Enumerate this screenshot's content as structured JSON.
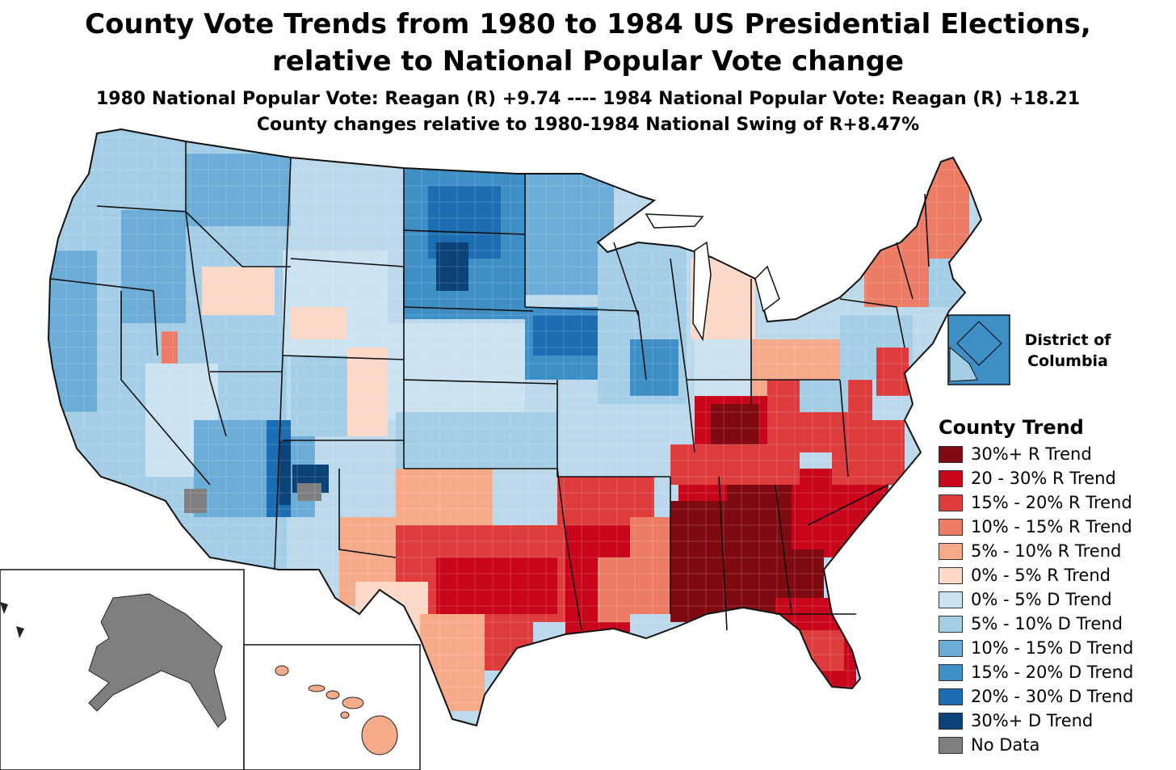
{
  "titles": {
    "line1": "County Vote Trends from 1980 to 1984 US Presidential Elections,",
    "line2": "relative to National Popular Vote change",
    "subtitle": "1980 National Popular Vote: Reagan (R) +9.74 ---- 1984 National Popular Vote: Reagan (R) +18.21",
    "swing": "County changes relative to 1980-1984 National Swing of R+8.47%"
  },
  "dc_inset": {
    "label": "District of Columbia"
  },
  "legend": {
    "title": "County Trend",
    "items": [
      {
        "label": "30%+ R Trend",
        "color": "#7f0a12"
      },
      {
        "label": "20 - 30% R Trend",
        "color": "#c8051b"
      },
      {
        "label": "15% - 20% R Trend",
        "color": "#de3b3d"
      },
      {
        "label": "10% - 15% R Trend",
        "color": "#ec7c66"
      },
      {
        "label": "5% - 10% R Trend",
        "color": "#f5aa89"
      },
      {
        "label": "0% - 5% R Trend",
        "color": "#fbd8c8"
      },
      {
        "label": "0% - 5% D Trend",
        "color": "#cbe2f0"
      },
      {
        "label": "5% - 10% D Trend",
        "color": "#a4cde6"
      },
      {
        "label": "10% - 15% D Trend",
        "color": "#6badd6"
      },
      {
        "label": "15% - 20% D Trend",
        "color": "#3f8fc7"
      },
      {
        "label": "20% - 30% D Trend",
        "color": "#1c6db2"
      },
      {
        "label": "30%+ D Trend",
        "color": "#0b4277"
      },
      {
        "label": "No Data",
        "color": "#7f7f7f"
      }
    ]
  }
}
